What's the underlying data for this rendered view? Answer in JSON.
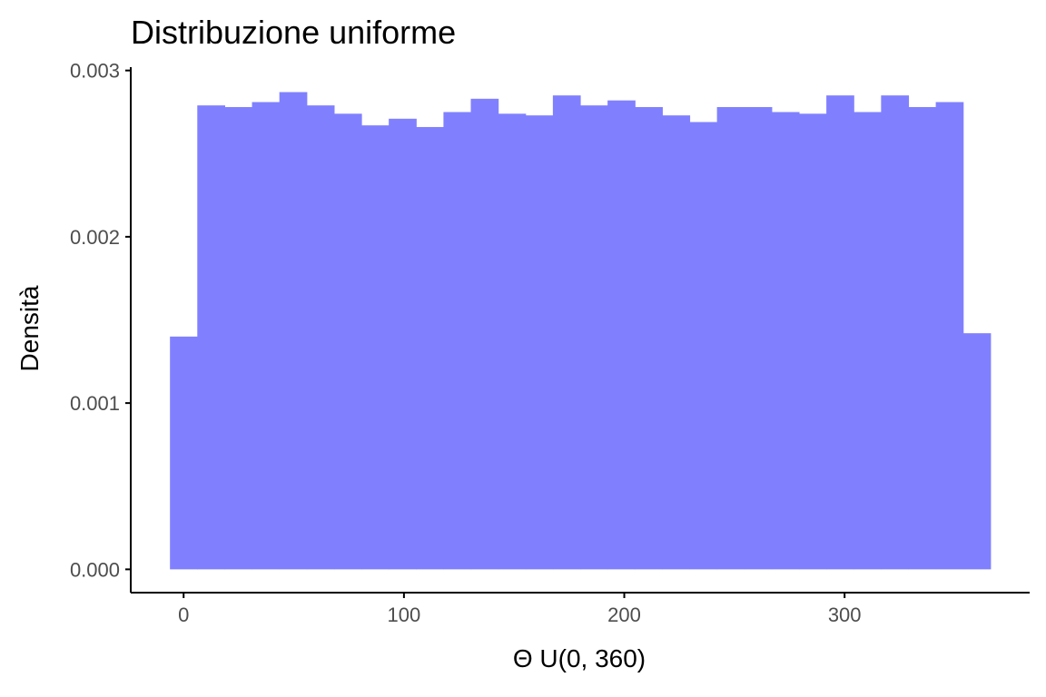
{
  "chart_data": {
    "type": "bar",
    "title": "Distribuzione uniforme",
    "xlabel": "Θ U(0, 360)",
    "ylabel": "Densità",
    "xlim": [
      -24,
      384
    ],
    "ylim": [
      -0.00014,
      0.00302
    ],
    "x_ticks": [
      {
        "value": 0,
        "label": "0"
      },
      {
        "value": 100,
        "label": "100"
      },
      {
        "value": 200,
        "label": "200"
      },
      {
        "value": 300,
        "label": "300"
      }
    ],
    "y_ticks": [
      {
        "value": 0,
        "label": "0.000"
      },
      {
        "value": 0.001,
        "label": "0.001"
      },
      {
        "value": 0.002,
        "label": "0.002"
      },
      {
        "value": 0.003,
        "label": "0.003"
      }
    ],
    "bin_width": 12.41,
    "bin_centers": [
      0,
      12.41,
      24.83,
      37.24,
      49.66,
      62.07,
      74.48,
      86.9,
      99.31,
      111.72,
      124.14,
      136.55,
      148.97,
      161.38,
      173.79,
      186.21,
      198.62,
      211.03,
      223.45,
      235.86,
      248.28,
      260.69,
      273.1,
      285.52,
      297.93,
      310.34,
      322.76,
      335.17,
      347.59,
      360
    ],
    "values": [
      0.0014,
      0.00279,
      0.00278,
      0.00281,
      0.00287,
      0.00279,
      0.00274,
      0.00267,
      0.00271,
      0.00266,
      0.00275,
      0.00283,
      0.00274,
      0.00273,
      0.00285,
      0.00279,
      0.00282,
      0.00278,
      0.00273,
      0.00269,
      0.00278,
      0.00278,
      0.00275,
      0.00274,
      0.00285,
      0.00275,
      0.00285,
      0.00278,
      0.00281,
      0.00142
    ],
    "bar_color": "#8080ff",
    "grid": false
  }
}
